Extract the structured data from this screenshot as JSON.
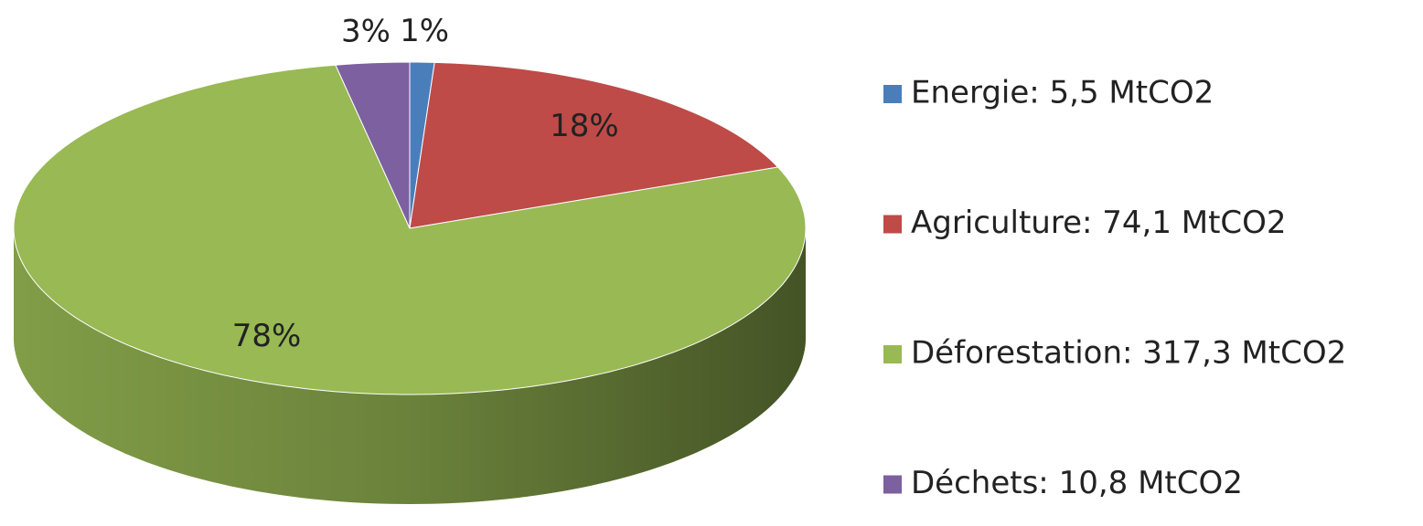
{
  "chart_data": {
    "type": "pie",
    "categories": [
      "Energie: 5,5 MtCO2",
      "Agriculture: 74,1 MtCO2",
      "Déforestation: 317,3 MtCO2",
      "Déchets: 10,8 MtCO2"
    ],
    "values": [
      1,
      18,
      78,
      3
    ],
    "value_labels": [
      "1%",
      "18%",
      "78%",
      "3%"
    ],
    "colors": [
      "#4a7ebb",
      "#be4b48",
      "#98b954",
      "#7d60a0"
    ],
    "legend": "right"
  }
}
